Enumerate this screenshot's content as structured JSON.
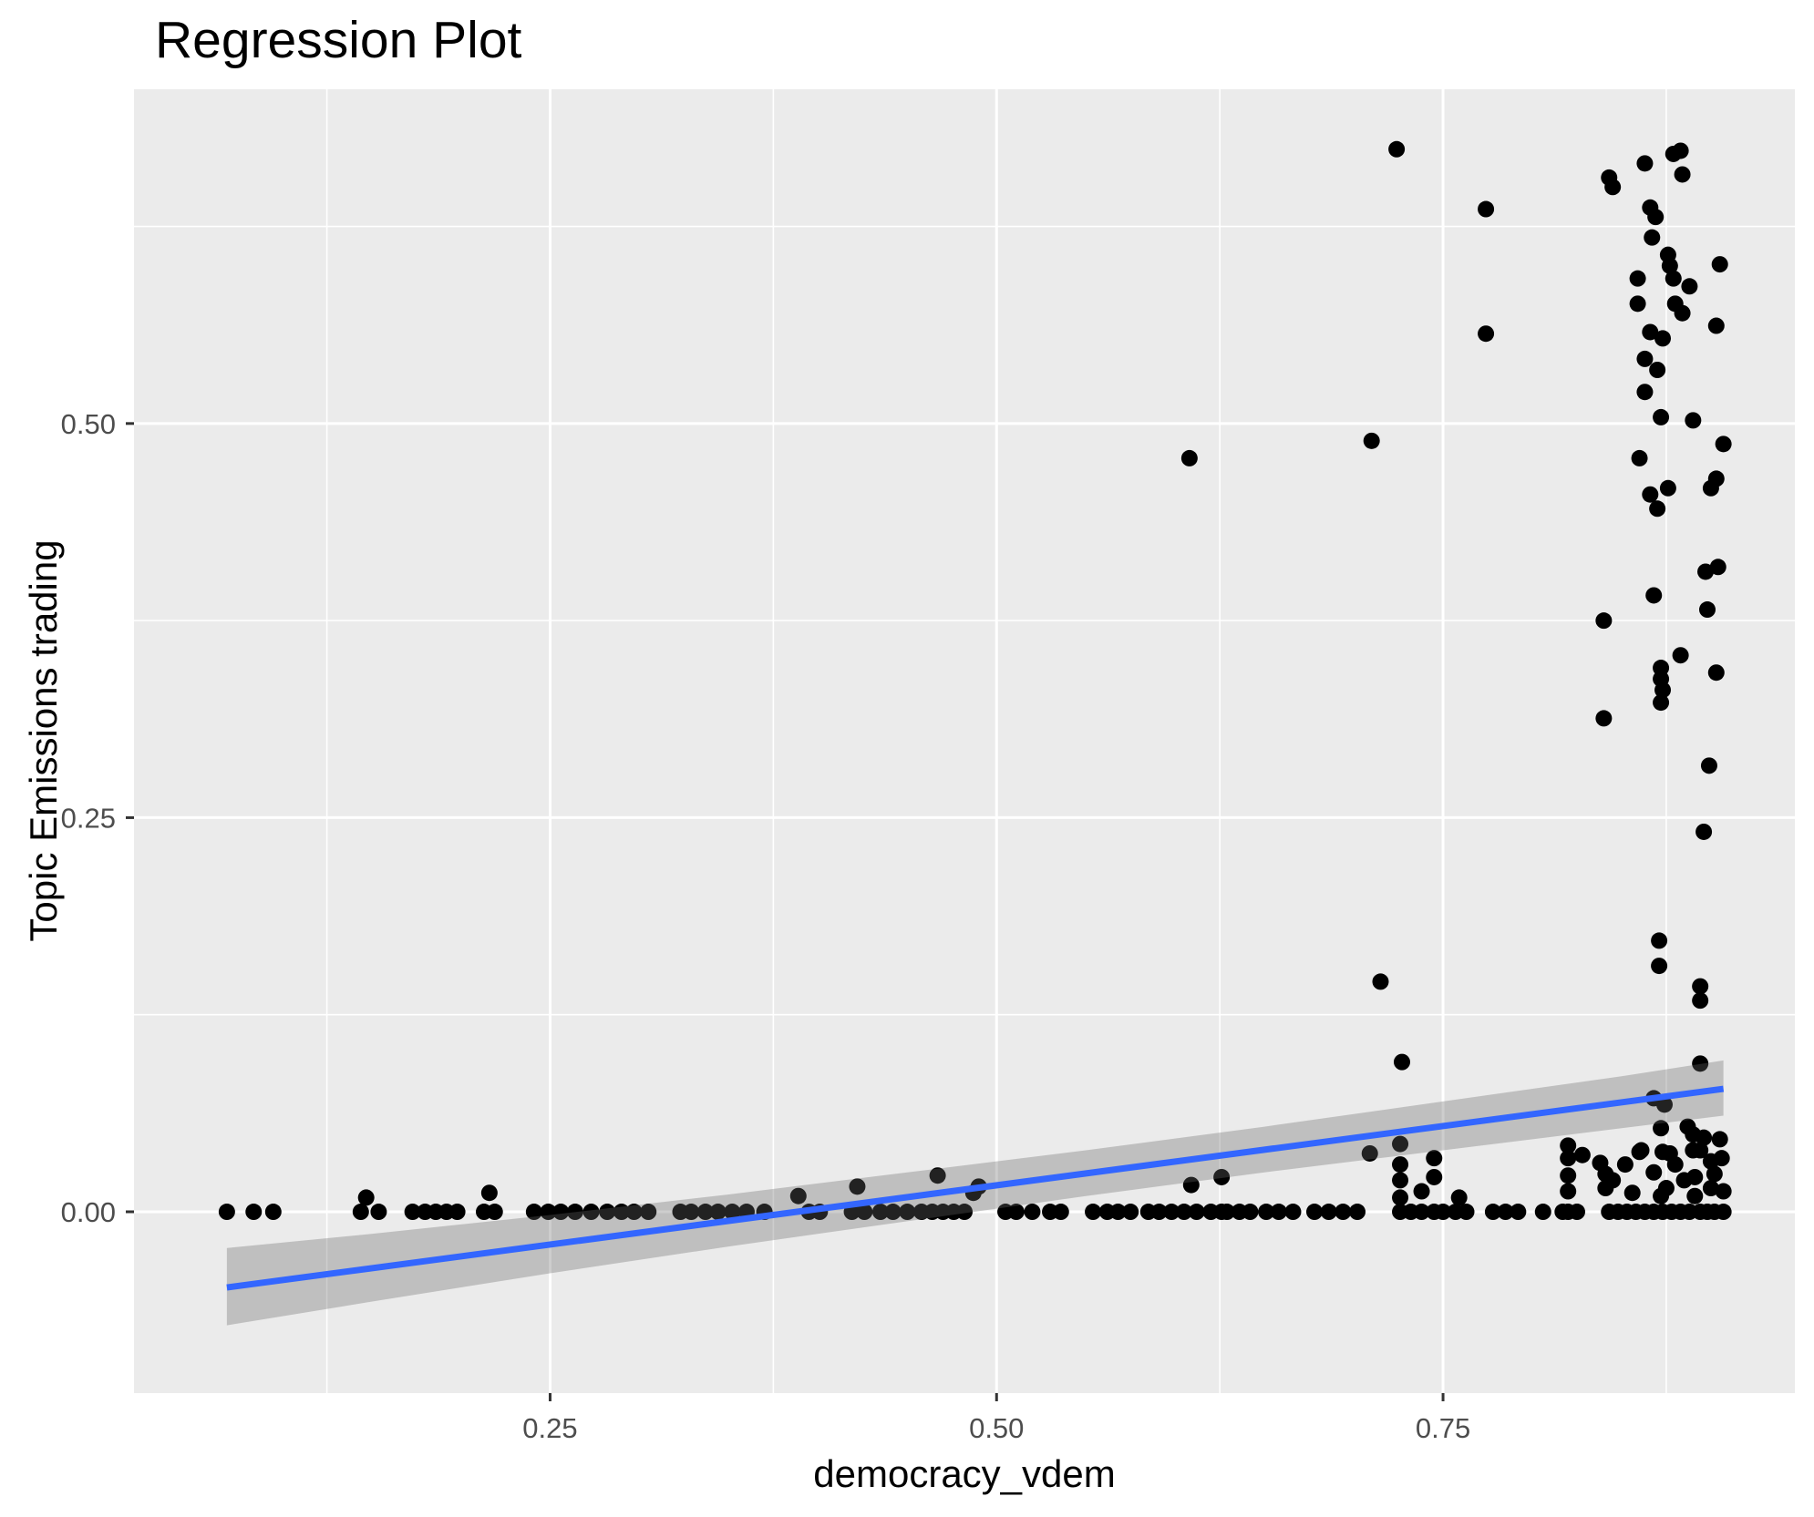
{
  "chart_data": {
    "type": "scatter",
    "title": "Regression Plot",
    "xlabel": "democracy_vdem",
    "ylabel": "Topic Emissions trading",
    "legend_position": "none",
    "grid": "major-and-minor-white-on-gray",
    "panel_bg": "#EBEBEB",
    "grid_color": "#FFFFFF",
    "tick_label_color": "#4D4D4D",
    "tick_mark_color": "#333333",
    "point_color": "#000000",
    "point_radius": 9,
    "xlim": [
      0.017,
      0.947
    ],
    "ylim": [
      -0.115,
      0.712
    ],
    "x_ticks": [
      {
        "value": 0.25,
        "label": "0.25"
      },
      {
        "value": 0.5,
        "label": "0.50"
      },
      {
        "value": 0.75,
        "label": "0.75"
      }
    ],
    "y_ticks": [
      {
        "value": 0.0,
        "label": "0.00"
      },
      {
        "value": 0.25,
        "label": "0.25"
      },
      {
        "value": 0.5,
        "label": "0.50"
      }
    ],
    "x_minor_ticks": [
      0.125,
      0.375,
      0.625,
      0.875
    ],
    "y_minor_ticks": [
      0.125,
      0.375,
      0.625
    ],
    "regression_line": {
      "color": "#3366FF",
      "width": 7,
      "x1": 0.069,
      "y1": -0.048,
      "x2": 0.907,
      "y2": 0.078
    },
    "ci_band": {
      "fill": "rgba(103,103,103,0.33)",
      "x": [
        0.069,
        0.15,
        0.25,
        0.35,
        0.45,
        0.55,
        0.65,
        0.75,
        0.85,
        0.907
      ],
      "upper": [
        -0.023,
        -0.014,
        -0.002,
        0.011,
        0.025,
        0.039,
        0.054,
        0.07,
        0.086,
        0.096
      ],
      "lower": [
        -0.072,
        -0.057,
        -0.039,
        -0.022,
        -0.006,
        0.01,
        0.025,
        0.039,
        0.053,
        0.061
      ]
    },
    "points_y0_x": [
      0.069,
      0.084,
      0.095,
      0.144,
      0.154,
      0.173,
      0.18,
      0.186,
      0.192,
      0.198,
      0.213,
      0.219,
      0.241,
      0.249,
      0.256,
      0.264,
      0.273,
      0.282,
      0.29,
      0.297,
      0.305,
      0.323,
      0.329,
      0.337,
      0.344,
      0.352,
      0.36,
      0.37,
      0.395,
      0.401,
      0.419,
      0.426,
      0.435,
      0.442,
      0.45,
      0.458,
      0.464,
      0.47,
      0.476,
      0.482,
      0.505,
      0.511,
      0.52,
      0.53,
      0.536,
      0.554,
      0.562,
      0.568,
      0.575,
      0.585,
      0.591,
      0.598,
      0.605,
      0.612,
      0.62,
      0.626,
      0.629,
      0.636,
      0.642,
      0.651,
      0.658,
      0.666,
      0.678,
      0.686,
      0.694,
      0.702,
      0.726,
      0.732,
      0.738,
      0.745,
      0.75,
      0.757,
      0.763,
      0.778,
      0.785,
      0.792,
      0.806,
      0.817,
      0.82,
      0.825,
      0.843,
      0.848,
      0.853,
      0.858,
      0.863,
      0.868,
      0.873,
      0.878,
      0.883,
      0.888,
      0.894,
      0.898,
      0.902,
      0.907
    ],
    "points_xy": [
      [
        0.147,
        0.009
      ],
      [
        0.216,
        0.012
      ],
      [
        0.389,
        0.01
      ],
      [
        0.422,
        0.016
      ],
      [
        0.467,
        0.023
      ],
      [
        0.487,
        0.012
      ],
      [
        0.49,
        0.016
      ],
      [
        0.609,
        0.017
      ],
      [
        0.626,
        0.022
      ],
      [
        0.726,
        0.043
      ],
      [
        0.726,
        0.03
      ],
      [
        0.726,
        0.02
      ],
      [
        0.726,
        0.009
      ],
      [
        0.738,
        0.013
      ],
      [
        0.745,
        0.034
      ],
      [
        0.745,
        0.022
      ],
      [
        0.759,
        0.009
      ],
      [
        0.82,
        0.042
      ],
      [
        0.82,
        0.034
      ],
      [
        0.82,
        0.023
      ],
      [
        0.82,
        0.013
      ],
      [
        0.828,
        0.036
      ],
      [
        0.838,
        0.031
      ],
      [
        0.841,
        0.024
      ],
      [
        0.841,
        0.015
      ],
      [
        0.845,
        0.02
      ],
      [
        0.852,
        0.03
      ],
      [
        0.856,
        0.012
      ],
      [
        0.86,
        0.038
      ],
      [
        0.868,
        0.025
      ],
      [
        0.872,
        0.01
      ],
      [
        0.875,
        0.015
      ],
      [
        0.88,
        0.03
      ],
      [
        0.885,
        0.02
      ],
      [
        0.709,
        0.037
      ],
      [
        0.861,
        0.039
      ],
      [
        0.872,
        0.053
      ],
      [
        0.887,
        0.054
      ],
      [
        0.89,
        0.049
      ],
      [
        0.873,
        0.038
      ],
      [
        0.877,
        0.037
      ],
      [
        0.89,
        0.039
      ],
      [
        0.9,
        0.032
      ],
      [
        0.896,
        0.047
      ],
      [
        0.905,
        0.046
      ],
      [
        0.894,
        0.039
      ],
      [
        0.902,
        0.024
      ],
      [
        0.9,
        0.015
      ],
      [
        0.891,
        0.01
      ],
      [
        0.906,
        0.034
      ],
      [
        0.907,
        0.013
      ],
      [
        0.891,
        0.022
      ],
      [
        0.868,
        0.072
      ],
      [
        0.874,
        0.068
      ],
      [
        0.715,
        0.146
      ],
      [
        0.727,
        0.095
      ],
      [
        0.871,
        0.172
      ],
      [
        0.871,
        0.156
      ],
      [
        0.894,
        0.143
      ],
      [
        0.894,
        0.134
      ],
      [
        0.894,
        0.094
      ],
      [
        0.896,
        0.241
      ],
      [
        0.899,
        0.283
      ],
      [
        0.84,
        0.313
      ],
      [
        0.872,
        0.323
      ],
      [
        0.873,
        0.331
      ],
      [
        0.872,
        0.338
      ],
      [
        0.872,
        0.345
      ],
      [
        0.903,
        0.342
      ],
      [
        0.883,
        0.353
      ],
      [
        0.84,
        0.375
      ],
      [
        0.898,
        0.382
      ],
      [
        0.868,
        0.391
      ],
      [
        0.897,
        0.406
      ],
      [
        0.904,
        0.409
      ],
      [
        0.87,
        0.446
      ],
      [
        0.866,
        0.455
      ],
      [
        0.876,
        0.459
      ],
      [
        0.9,
        0.459
      ],
      [
        0.903,
        0.465
      ],
      [
        0.86,
        0.478
      ],
      [
        0.907,
        0.487
      ],
      [
        0.71,
        0.489
      ],
      [
        0.608,
        0.478
      ],
      [
        0.872,
        0.504
      ],
      [
        0.89,
        0.502
      ],
      [
        0.863,
        0.52
      ],
      [
        0.87,
        0.534
      ],
      [
        0.863,
        0.541
      ],
      [
        0.873,
        0.554
      ],
      [
        0.866,
        0.558
      ],
      [
        0.774,
        0.557
      ],
      [
        0.903,
        0.562
      ],
      [
        0.884,
        0.57
      ],
      [
        0.859,
        0.576
      ],
      [
        0.88,
        0.576
      ],
      [
        0.888,
        0.587
      ],
      [
        0.879,
        0.592
      ],
      [
        0.859,
        0.592
      ],
      [
        0.877,
        0.6
      ],
      [
        0.876,
        0.607
      ],
      [
        0.905,
        0.601
      ],
      [
        0.867,
        0.618
      ],
      [
        0.869,
        0.631
      ],
      [
        0.866,
        0.637
      ],
      [
        0.774,
        0.636
      ],
      [
        0.845,
        0.65
      ],
      [
        0.843,
        0.656
      ],
      [
        0.884,
        0.658
      ],
      [
        0.863,
        0.665
      ],
      [
        0.879,
        0.671
      ],
      [
        0.883,
        0.673
      ],
      [
        0.724,
        0.674
      ]
    ]
  }
}
